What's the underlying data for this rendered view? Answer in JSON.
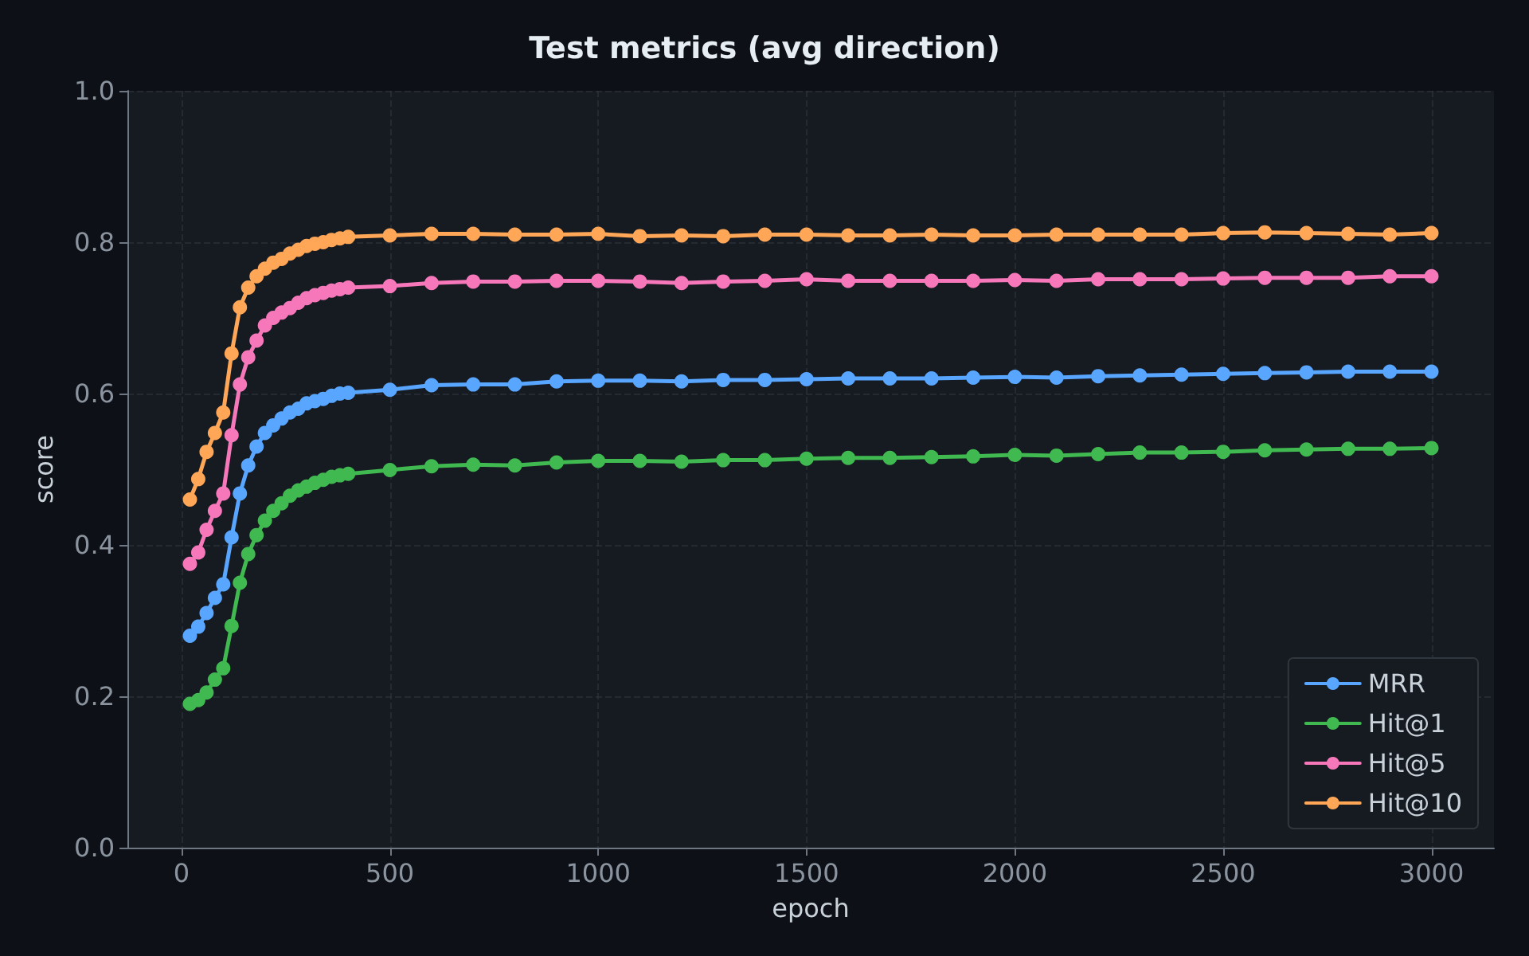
{
  "chart_data": {
    "type": "line",
    "title": "Test metrics (avg direction)",
    "xlabel": "epoch",
    "ylabel": "score",
    "x": [
      20,
      40,
      60,
      80,
      100,
      120,
      140,
      160,
      180,
      200,
      220,
      240,
      260,
      280,
      300,
      320,
      340,
      360,
      380,
      400,
      500,
      600,
      700,
      800,
      900,
      1000,
      1100,
      1200,
      1300,
      1400,
      1500,
      1600,
      1700,
      1800,
      1900,
      2000,
      2100,
      2200,
      2300,
      2400,
      2500,
      2600,
      2700,
      2800,
      2900,
      3000
    ],
    "series": [
      {
        "name": "MRR",
        "color": "#58a6ff",
        "values": [
          0.28,
          0.292,
          0.31,
          0.33,
          0.348,
          0.41,
          0.468,
          0.505,
          0.53,
          0.548,
          0.558,
          0.567,
          0.575,
          0.58,
          0.587,
          0.59,
          0.593,
          0.597,
          0.6,
          0.601,
          0.605,
          0.611,
          0.612,
          0.612,
          0.616,
          0.617,
          0.617,
          0.616,
          0.618,
          0.618,
          0.619,
          0.62,
          0.62,
          0.62,
          0.621,
          0.622,
          0.621,
          0.623,
          0.624,
          0.625,
          0.626,
          0.627,
          0.628,
          0.629,
          0.629,
          0.629
        ]
      },
      {
        "name": "Hit@1",
        "color": "#3fb950",
        "values": [
          0.19,
          0.195,
          0.205,
          0.222,
          0.237,
          0.293,
          0.35,
          0.388,
          0.413,
          0.432,
          0.445,
          0.455,
          0.465,
          0.472,
          0.477,
          0.482,
          0.486,
          0.49,
          0.492,
          0.494,
          0.499,
          0.504,
          0.506,
          0.505,
          0.509,
          0.511,
          0.511,
          0.51,
          0.512,
          0.512,
          0.514,
          0.515,
          0.515,
          0.516,
          0.517,
          0.519,
          0.518,
          0.52,
          0.522,
          0.522,
          0.523,
          0.525,
          0.526,
          0.527,
          0.527,
          0.528
        ]
      },
      {
        "name": "Hit@5",
        "color": "#f778ba",
        "values": [
          0.375,
          0.39,
          0.42,
          0.445,
          0.468,
          0.545,
          0.612,
          0.648,
          0.67,
          0.69,
          0.7,
          0.707,
          0.713,
          0.72,
          0.726,
          0.73,
          0.733,
          0.736,
          0.738,
          0.74,
          0.742,
          0.746,
          0.748,
          0.748,
          0.749,
          0.749,
          0.748,
          0.746,
          0.748,
          0.749,
          0.751,
          0.749,
          0.749,
          0.749,
          0.749,
          0.75,
          0.749,
          0.751,
          0.751,
          0.751,
          0.752,
          0.753,
          0.753,
          0.753,
          0.755,
          0.755
        ]
      },
      {
        "name": "Hit@10",
        "color": "#ffa657",
        "values": [
          0.46,
          0.487,
          0.523,
          0.548,
          0.575,
          0.653,
          0.714,
          0.74,
          0.755,
          0.765,
          0.773,
          0.778,
          0.785,
          0.79,
          0.795,
          0.798,
          0.8,
          0.803,
          0.805,
          0.807,
          0.809,
          0.811,
          0.811,
          0.81,
          0.81,
          0.811,
          0.808,
          0.809,
          0.808,
          0.81,
          0.81,
          0.809,
          0.809,
          0.81,
          0.809,
          0.809,
          0.81,
          0.81,
          0.81,
          0.81,
          0.812,
          0.813,
          0.812,
          0.811,
          0.81,
          0.812
        ]
      }
    ],
    "xlim": [
      -130,
      3150
    ],
    "xticks": [
      0,
      500,
      1000,
      1500,
      2000,
      2500,
      3000
    ],
    "ylim": [
      0,
      1
    ],
    "yticks": [
      {
        "value": 0,
        "label": "0.0"
      },
      {
        "value": 0.2,
        "label": "0.2"
      },
      {
        "value": 0.4,
        "label": "0.4"
      },
      {
        "value": 0.6,
        "label": "0.6"
      },
      {
        "value": 0.8,
        "label": "0.8"
      },
      {
        "value": 1,
        "label": "1.0"
      }
    ],
    "grid": true,
    "legend": "bottom right",
    "marker": "circle",
    "line_style": "solid"
  }
}
